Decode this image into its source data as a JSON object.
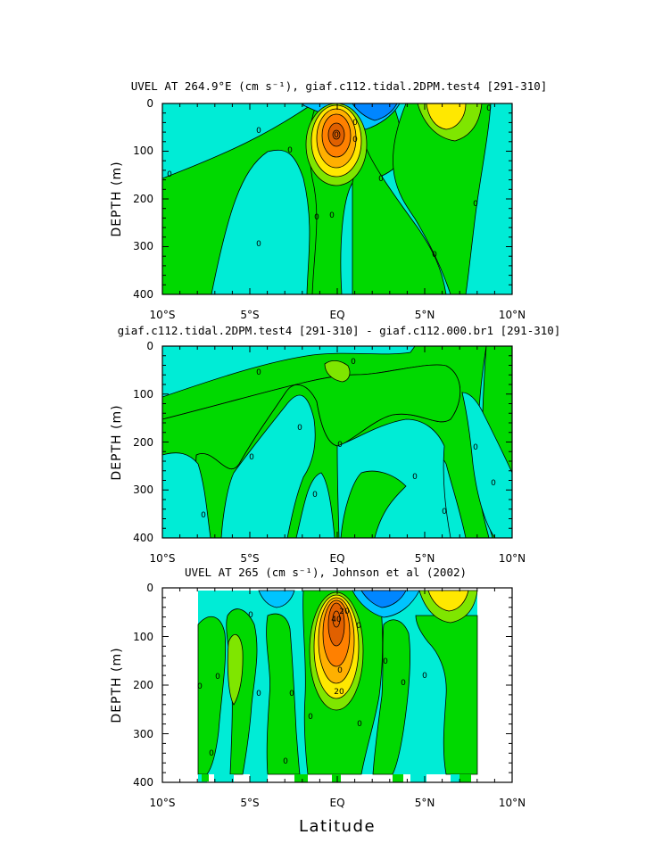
{
  "colors": {
    "cyan": "#00ecd6",
    "green": "#00d900",
    "blue_light": "#00c4ff",
    "blue": "#0086ff",
    "lime": "#7fe600",
    "yellow": "#ffe800",
    "orange_light": "#ffb000",
    "orange": "#ff8000",
    "orange_dark": "#e06000"
  },
  "chart_data": [
    {
      "type": "heatmap",
      "title": "UVEL AT 264.9°E (cm s⁻¹), giaf.c112.tidal.2DPM.test4 [291-310]",
      "xlabel": "",
      "ylabel": "DEPTH (m)",
      "xlim": [
        -10,
        10
      ],
      "ylim": [
        400,
        0
      ],
      "x_ticks": [
        "10°S",
        "5°S",
        "EQ",
        "5°N",
        "10°N"
      ],
      "y_ticks": [
        "0",
        "100",
        "200",
        "300",
        "400"
      ],
      "contour_labels": [
        "0",
        "0",
        "0",
        "0",
        "0",
        "0",
        "0",
        "0",
        "0",
        "0",
        "0",
        "0",
        "0"
      ]
    },
    {
      "type": "heatmap",
      "title": "giaf.c112.tidal.2DPM.test4 [291-310] - giaf.c112.000.br1 [291-310]",
      "xlabel": "",
      "ylabel": "DEPTH (m)",
      "xlim": [
        -10,
        10
      ],
      "ylim": [
        400,
        0
      ],
      "x_ticks": [
        "10°S",
        "5°S",
        "EQ",
        "5°N",
        "10°N"
      ],
      "y_ticks": [
        "0",
        "100",
        "200",
        "300",
        "400"
      ],
      "contour_labels": [
        "0",
        "0",
        "0",
        "0",
        "0",
        "0",
        "0",
        "0",
        "0",
        "0",
        "0"
      ]
    },
    {
      "type": "heatmap",
      "title": "UVEL AT 265 (cm s⁻¹), Johnson et al (2002)",
      "xlabel": "Latitude",
      "ylabel": "DEPTH (m)",
      "xlim": [
        -10,
        10
      ],
      "ylim": [
        400,
        0
      ],
      "x_ticks": [
        "10°S",
        "5°S",
        "EQ",
        "5°N",
        "10°N"
      ],
      "y_ticks": [
        "0",
        "100",
        "200",
        "300",
        "400"
      ],
      "contour_labels": [
        "0",
        "0",
        "0",
        "0",
        "0",
        "0",
        "0",
        "0",
        "0",
        "0",
        "0",
        "0",
        "0",
        "0",
        "20",
        "40",
        "20"
      ]
    }
  ]
}
